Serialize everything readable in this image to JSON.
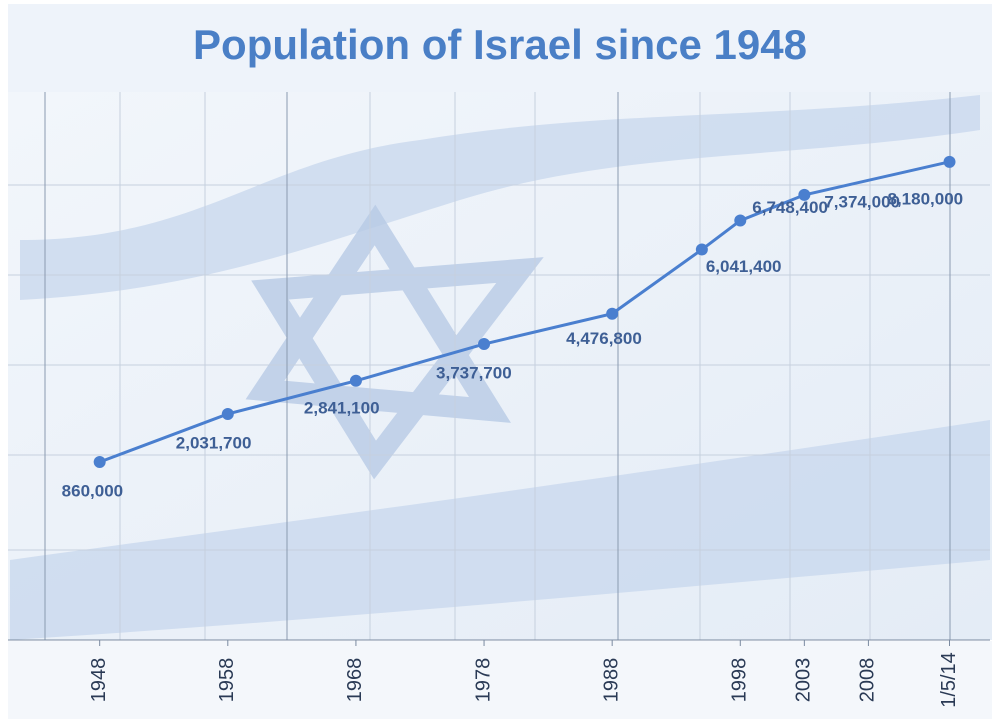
{
  "chart_data": {
    "type": "line",
    "title": "Population of Israel since 1948",
    "x": [
      1948,
      1958,
      1968,
      1978,
      1988,
      1995,
      1998,
      2003,
      2014.33
    ],
    "series": [
      {
        "name": "Population",
        "color": "#4a7fcf",
        "values": [
          860000,
          2031700,
          2841100,
          3737700,
          4476800,
          6041400,
          6748400,
          7374000,
          8180000
        ],
        "value_labels": [
          "860,000",
          "2,031,700",
          "2,841,100",
          "3,737,700",
          "4,476,800",
          "6,041,400",
          "6,748,400",
          "7,374,000",
          "8,180,000"
        ]
      }
    ],
    "xlim": [
      1941,
      2017.1
    ],
    "xticks": [
      1948,
      1958,
      1968,
      1978,
      1988,
      1998,
      2003,
      2008,
      {
        "value": 2014.33,
        "label": "1/5/14"
      }
    ],
    "ylim": [
      -3480000,
      9810000
    ]
  }
}
